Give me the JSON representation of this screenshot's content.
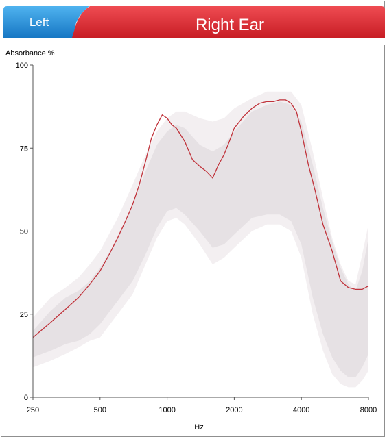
{
  "header": {
    "left_tab_label": "Left",
    "title": "Right Ear",
    "colors": {
      "left_tab": "#1f8fd6",
      "title_bar": "#d9282f"
    }
  },
  "chart_data": {
    "type": "area",
    "title": "Right Ear",
    "ylabel": "Absorbance %",
    "xlabel": "Hz",
    "x_scale": "log",
    "x_ticks": [
      250,
      500,
      1000,
      2000,
      4000,
      8000
    ],
    "y_ticks": [
      0,
      25,
      50,
      75,
      100
    ],
    "xlim": [
      250,
      8000
    ],
    "ylim": [
      0,
      100
    ],
    "grid": false,
    "series": [
      {
        "name": "",
        "color": "#c0323a",
        "x": [
          250,
          300,
          350,
          400,
          450,
          500,
          550,
          600,
          650,
          700,
          750,
          800,
          850,
          900,
          950,
          1000,
          1050,
          1100,
          1200,
          1300,
          1400,
          1500,
          1600,
          1700,
          1800,
          1900,
          2000,
          2200,
          2400,
          2600,
          2800,
          3000,
          3200,
          3400,
          3600,
          3800,
          4000,
          4300,
          4600,
          5000,
          5500,
          6000,
          6500,
          7000,
          7500,
          8000
        ],
        "y": [
          18,
          22.5,
          26.5,
          30,
          34,
          38,
          43,
          48,
          53,
          58,
          64,
          71,
          78,
          82,
          85,
          84,
          82,
          81,
          77,
          71.5,
          69.5,
          68,
          66,
          70,
          73,
          77,
          81,
          84.5,
          87,
          88.5,
          89,
          89,
          89.5,
          89.5,
          88.5,
          86,
          80,
          70,
          62.5,
          52,
          44,
          35,
          33,
          32.5,
          32.5,
          33.5
        ]
      }
    ],
    "bands": [
      {
        "name": "",
        "color": "#f3eff1",
        "x": [
          250,
          300,
          350,
          400,
          450,
          500,
          600,
          700,
          800,
          900,
          1000,
          1100,
          1200,
          1400,
          1600,
          1800,
          2000,
          2400,
          2800,
          3200,
          3600,
          4000,
          4500,
          5000,
          5500,
          6000,
          6500,
          7000,
          7500,
          8000
        ],
        "upper": [
          24,
          30,
          33,
          36,
          40,
          44,
          54,
          64,
          73,
          80,
          84,
          86,
          86,
          84,
          83,
          84,
          87,
          90,
          92,
          92,
          92,
          88,
          74,
          60,
          48,
          40,
          35,
          34,
          43,
          52
        ],
        "lower": [
          9,
          11,
          13,
          15,
          17,
          18,
          25,
          31,
          40,
          48,
          53,
          54,
          52,
          46,
          40,
          42,
          45,
          50,
          52,
          52,
          50,
          42,
          25,
          14,
          7,
          4,
          3,
          3,
          5,
          8
        ]
      },
      {
        "name": "",
        "color": "#e6e1e4",
        "x": [
          250,
          300,
          350,
          400,
          450,
          500,
          600,
          700,
          800,
          900,
          1000,
          1100,
          1200,
          1400,
          1600,
          1800,
          2000,
          2400,
          2800,
          3200,
          3600,
          4000,
          4500,
          5000,
          5500,
          6000,
          6500,
          7000,
          7500,
          8000
        ],
        "upper": [
          20,
          26,
          30,
          32,
          35,
          39,
          48,
          58,
          68,
          76,
          80,
          82,
          81,
          76,
          74,
          76,
          80,
          86,
          88,
          89,
          88,
          83,
          70,
          57,
          47,
          39,
          34,
          32,
          38,
          48
        ],
        "lower": [
          12,
          14,
          16,
          17,
          19,
          22,
          29,
          35,
          43,
          51,
          56,
          57,
          55,
          50,
          45,
          46,
          49,
          54,
          55,
          55,
          53,
          46,
          30,
          19,
          12,
          8,
          6,
          6,
          9,
          13
        ]
      }
    ]
  }
}
